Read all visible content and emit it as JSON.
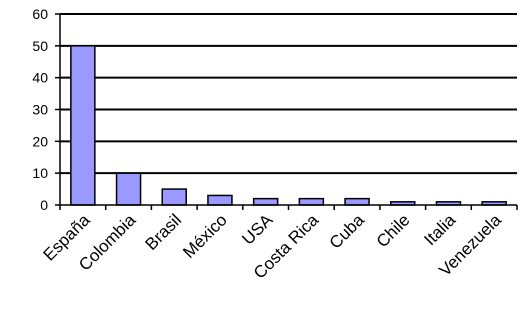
{
  "colors": {
    "bar_fill": "#9999ff",
    "bar_stroke": "#000000",
    "grid": "#000000",
    "axis": "#000000",
    "background": "#ffffff"
  },
  "chart_data": {
    "type": "bar",
    "title": "",
    "xlabel": "",
    "ylabel": "",
    "categories": [
      "España",
      "Colombia",
      "Brasil",
      "México",
      "USA",
      "Costa Rica",
      "Cuba",
      "Chile",
      "Italia",
      "Venezuela"
    ],
    "values": [
      50,
      10,
      5,
      3,
      2,
      2,
      2,
      1,
      1,
      1
    ],
    "ylim": [
      0,
      60
    ],
    "yticks": [
      "0",
      "10",
      "20",
      "30",
      "40",
      "50",
      "60"
    ],
    "grid": true,
    "legend": false
  }
}
